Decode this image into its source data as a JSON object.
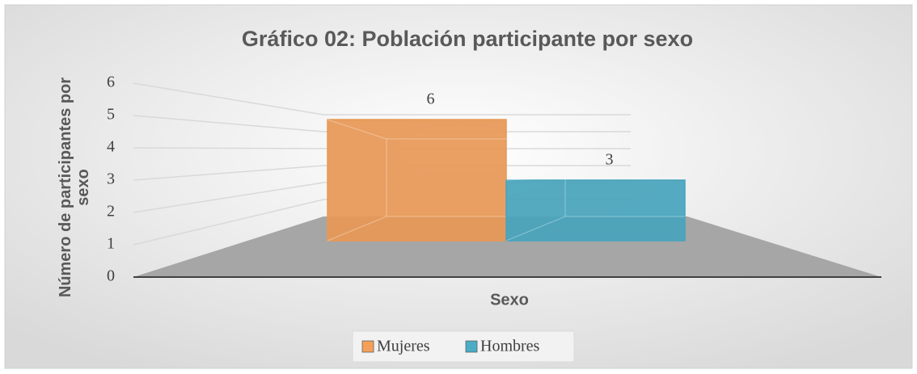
{
  "chart_data": {
    "type": "bar",
    "title": "Gráfico 02: Población participante por sexo",
    "x_label": "Sexo",
    "y_label": "Número de participantes por sexo",
    "categories": [
      null
    ],
    "series": [
      {
        "name": "Mujeres",
        "color": "#f4a05a",
        "values": [
          6
        ]
      },
      {
        "name": "Hombres",
        "color": "#4bacc6",
        "values": [
          3
        ]
      }
    ],
    "ylim": [
      0,
      6
    ],
    "yticks": [
      0,
      1,
      2,
      3,
      4,
      5,
      6
    ],
    "grid": true,
    "legend": "bottom"
  }
}
